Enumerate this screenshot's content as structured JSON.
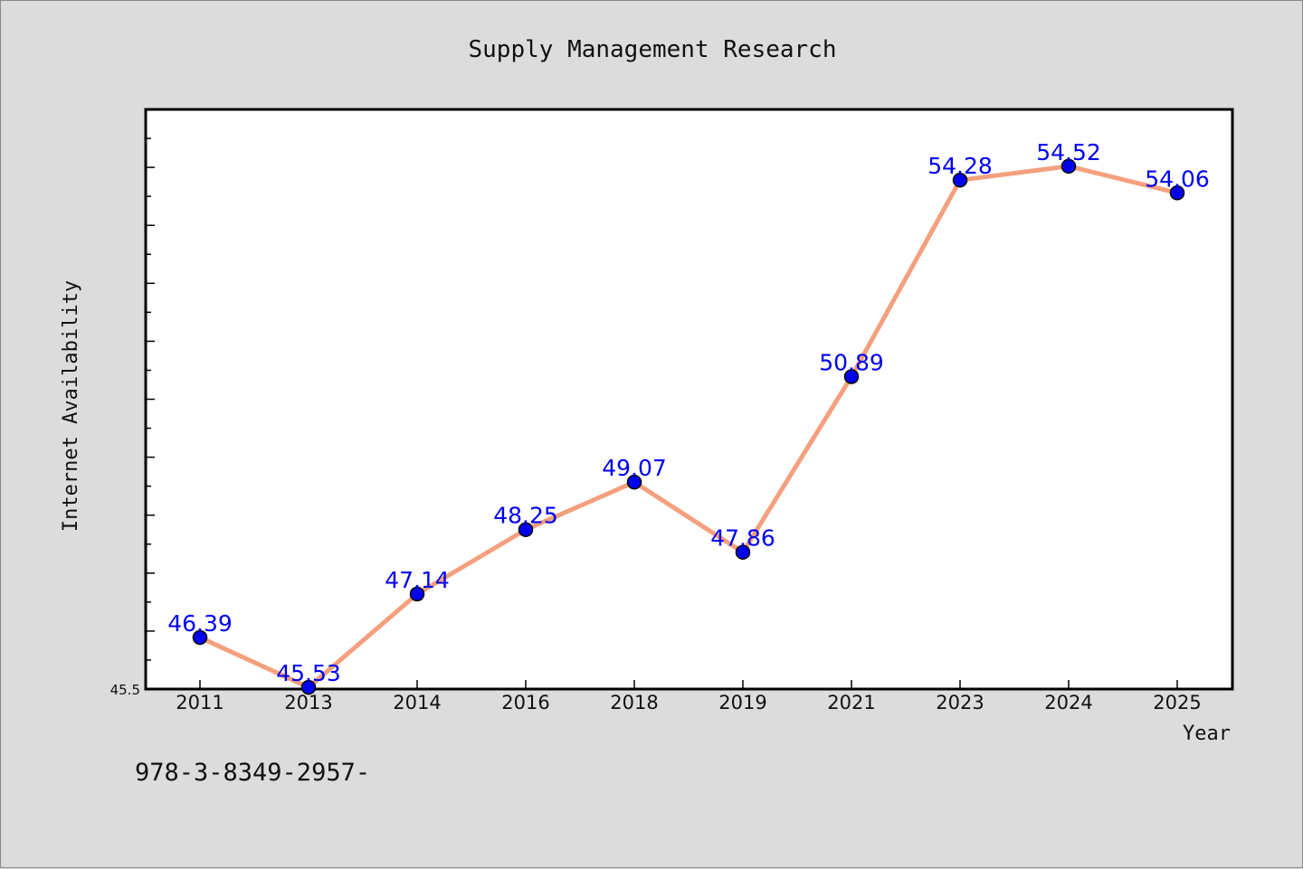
{
  "chart_data": {
    "type": "line",
    "title": "Supply Management Research",
    "xlabel": "Year",
    "ylabel": "Internet Availability",
    "categories": [
      "2011",
      "2013",
      "2014",
      "2016",
      "2018",
      "2019",
      "2021",
      "2023",
      "2024",
      "2025"
    ],
    "series": [
      {
        "values": [
          46.39,
          45.53,
          47.14,
          48.25,
          49.07,
          47.86,
          50.89,
          54.28,
          54.52,
          54.06
        ]
      }
    ],
    "data_labels": [
      "46.39",
      "45.53",
      "47.14",
      "48.25",
      "49.07",
      "47.86",
      "50.89",
      "54.28",
      "54.52",
      "54.06"
    ],
    "ylim": [
      45.5,
      55.5
    ],
    "yticks_labeled": [
      "45.5"
    ],
    "grid": false,
    "legend": "none",
    "colors": {
      "line": "#f4a07e",
      "marker": "#0000ee",
      "data_label": "#0000ee",
      "background": "#dcdcdc",
      "plot_background": "#ffffff"
    }
  },
  "footer_text": "978-3-8349-2957-"
}
